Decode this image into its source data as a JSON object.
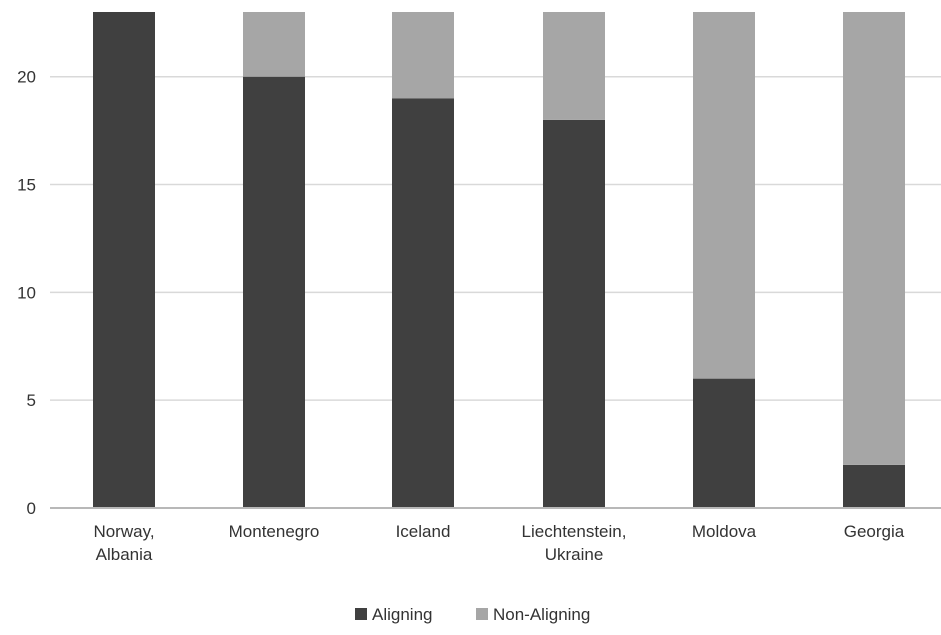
{
  "chart_data": {
    "type": "bar",
    "stacked": true,
    "categories": [
      [
        "Norway,",
        "Albania"
      ],
      [
        "Montenegro"
      ],
      [
        "Iceland"
      ],
      [
        "Liechtenstein,",
        "Ukraine"
      ],
      [
        "Moldova"
      ],
      [
        "Georgia"
      ]
    ],
    "series": [
      {
        "name": "Aligning",
        "color": "#404040",
        "values": [
          23,
          20,
          19,
          18,
          6,
          2
        ]
      },
      {
        "name": "Non-Aligning",
        "color": "#a6a6a6",
        "values": [
          0,
          3,
          4,
          5,
          17,
          21
        ]
      }
    ],
    "yticks": [
      0,
      5,
      10,
      15,
      20
    ],
    "ylim": [
      0,
      23
    ],
    "grid": true,
    "legend": "bottom-center"
  }
}
